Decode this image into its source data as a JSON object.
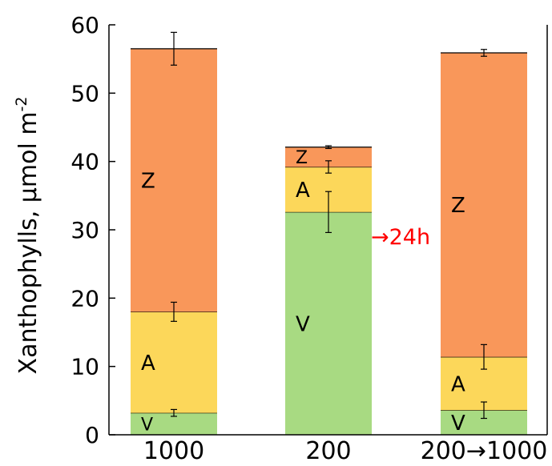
{
  "chart_data": {
    "type": "bar",
    "stacked": true,
    "ylabel": "Xanthophylls, μmol m",
    "ylabel_superscript": "-2",
    "ylim": [
      0,
      60
    ],
    "yticks": [
      0,
      10,
      20,
      30,
      40,
      50,
      60
    ],
    "categories": [
      "1000",
      "200",
      "200→1000"
    ],
    "series": [
      {
        "name": "V",
        "color": "#a8da82",
        "values": [
          3.2,
          32.6,
          3.6
        ],
        "errors": [
          0.5,
          3.0,
          1.2
        ]
      },
      {
        "name": "A",
        "color": "#fcd75a",
        "values": [
          14.8,
          6.6,
          7.8
        ],
        "errors": [
          1.4,
          0.9,
          1.8
        ]
      },
      {
        "name": "Z",
        "color": "#f9975a",
        "values": [
          38.5,
          2.9,
          44.5
        ],
        "errors": [
          2.4,
          0.2,
          0.5
        ]
      }
    ],
    "annotation": {
      "text": "→24h",
      "color": "#ff0000"
    }
  }
}
